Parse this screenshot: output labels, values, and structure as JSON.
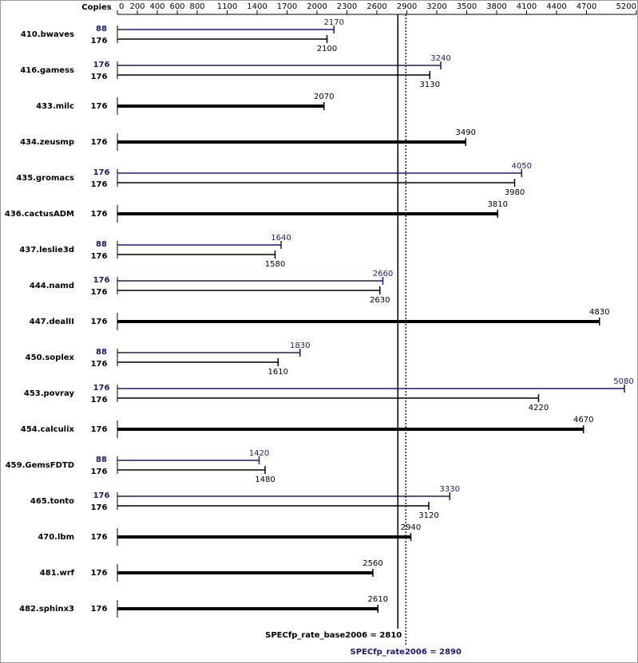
{
  "chart_data": {
    "type": "bar",
    "orientation": "horizontal",
    "copies_label": "Copies",
    "categories": [
      "410.bwaves",
      "416.gamess",
      "433.milc",
      "434.zeusmp",
      "435.gromacs",
      "436.cactusADM",
      "437.leslie3d",
      "444.namd",
      "447.dealII",
      "450.soplex",
      "453.povray",
      "454.calculix",
      "459.GemsFDTD",
      "465.tonto",
      "470.lbm",
      "481.wrf",
      "482.sphinx3"
    ],
    "series": [
      {
        "color": "#000000",
        "copies": [
          176,
          176,
          176,
          176,
          176,
          176,
          176,
          176,
          176,
          176,
          176,
          176,
          176,
          176,
          176,
          176,
          176
        ],
        "values": [
          2100,
          3130,
          2070,
          3490,
          3980,
          3810,
          1580,
          2630,
          4830,
          1610,
          4220,
          4670,
          1480,
          3120,
          2940,
          2560,
          2610
        ]
      },
      {
        "color": "#191970",
        "copies": [
          88,
          176,
          null,
          null,
          176,
          null,
          88,
          176,
          null,
          88,
          176,
          null,
          88,
          176,
          null,
          null,
          null
        ],
        "values": [
          2170,
          3240,
          null,
          null,
          4050,
          null,
          1640,
          2660,
          null,
          1830,
          5080,
          null,
          1420,
          3330,
          null,
          null,
          null
        ]
      }
    ],
    "xlim": [
      0,
      5200
    ],
    "xticks": [
      0,
      200,
      400,
      600,
      800,
      1100,
      1400,
      1700,
      2000,
      2300,
      2600,
      2900,
      3200,
      3500,
      3800,
      4100,
      4400,
      4700,
      5200
    ],
    "reference_lines": [
      {
        "value": 2810,
        "label": "SPECfp_rate_base2006 = 2810",
        "color": "#000000"
      },
      {
        "value": 2890,
        "label": "SPECfp_rate2006 = 2890",
        "color": "#191970"
      }
    ]
  }
}
